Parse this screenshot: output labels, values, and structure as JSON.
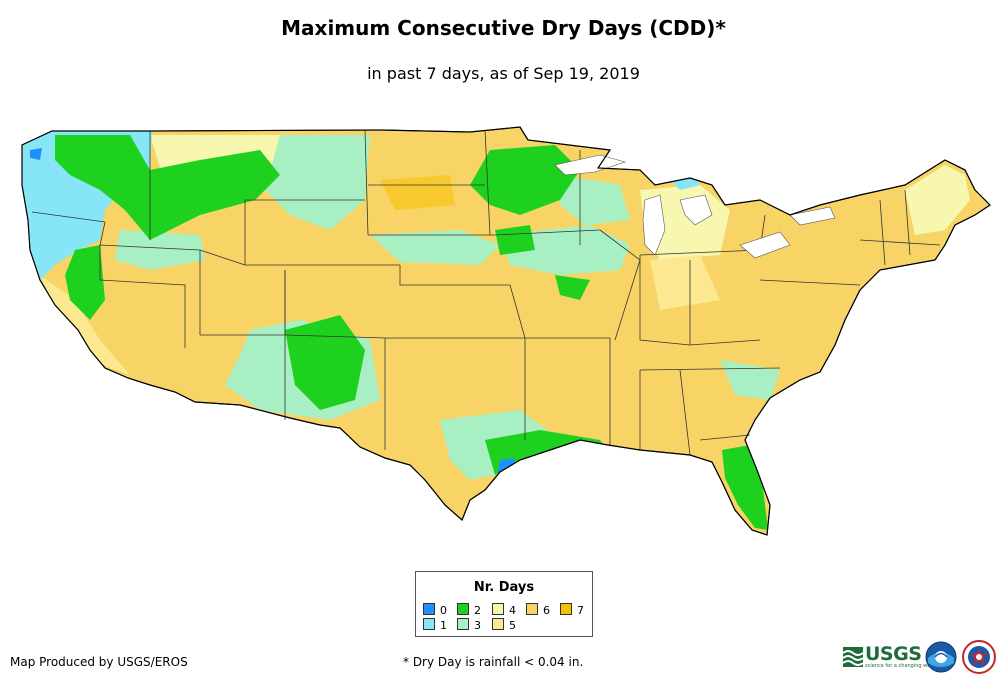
{
  "header": {
    "title": "Maximum Consecutive Dry Days (CDD)*",
    "subtitle": "in past 7 days, as of Sep 19, 2019"
  },
  "legend": {
    "title": "Nr. Days",
    "items": [
      {
        "label": "0",
        "color": "#1e90ff"
      },
      {
        "label": "1",
        "color": "#87e6f5"
      },
      {
        "label": "2",
        "color": "#1fd11f"
      },
      {
        "label": "3",
        "color": "#a8f0c4"
      },
      {
        "label": "4",
        "color": "#f7f7b0"
      },
      {
        "label": "5",
        "color": "#fbe890"
      },
      {
        "label": "6",
        "color": "#f8d466"
      },
      {
        "label": "7",
        "color": "#f5c000"
      }
    ]
  },
  "footer": {
    "credit": "Map Produced by USGS/EROS",
    "footnote": "* Dry Day is rainfall < 0.04 in."
  },
  "logos": {
    "usgs": "USGS",
    "usgs_tagline": "science for a changing world",
    "noaa": "noaa",
    "nws": "NATIONAL WEATHER SERVICE"
  },
  "map": {
    "region": "Contiguous United States",
    "dominant_class": "6",
    "areas": [
      {
        "name": "pacific-northwest",
        "class": "1"
      },
      {
        "name": "northern-rockies",
        "class": "2"
      },
      {
        "name": "northern-plains",
        "class": "3"
      },
      {
        "name": "upper-midwest",
        "class": "2"
      },
      {
        "name": "southwest",
        "class": "3"
      },
      {
        "name": "gulf-coast-texas-louisiana",
        "class": "2"
      },
      {
        "name": "florida",
        "class": "2"
      },
      {
        "name": "great-lakes",
        "class": "4"
      }
    ]
  }
}
